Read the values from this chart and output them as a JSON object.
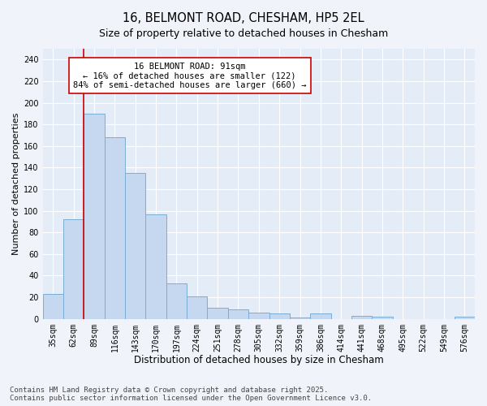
{
  "title": "16, BELMONT ROAD, CHESHAM, HP5 2EL",
  "subtitle": "Size of property relative to detached houses in Chesham",
  "xlabel": "Distribution of detached houses by size in Chesham",
  "ylabel": "Number of detached properties",
  "categories": [
    "35sqm",
    "62sqm",
    "89sqm",
    "116sqm",
    "143sqm",
    "170sqm",
    "197sqm",
    "224sqm",
    "251sqm",
    "278sqm",
    "305sqm",
    "332sqm",
    "359sqm",
    "386sqm",
    "414sqm",
    "441sqm",
    "468sqm",
    "495sqm",
    "522sqm",
    "549sqm",
    "576sqm"
  ],
  "values": [
    23,
    92,
    190,
    168,
    135,
    97,
    33,
    21,
    10,
    9,
    6,
    5,
    1,
    5,
    0,
    3,
    2,
    0,
    0,
    0,
    2
  ],
  "bar_color": "#c5d8f0",
  "bar_edge_color": "#7badd4",
  "vline_x": 1.5,
  "vline_color": "#cc0000",
  "annotation_line1": "16 BELMONT ROAD: 91sqm",
  "annotation_line2": "← 16% of detached houses are smaller (122)",
  "annotation_line3": "84% of semi-detached houses are larger (660) →",
  "annotation_box_color": "#cc0000",
  "annotation_text_color": "#000000",
  "background_color": "#f0f4fa",
  "plot_background_color": "#e4ecf7",
  "grid_color": "#ffffff",
  "ylim": [
    0,
    250
  ],
  "yticks": [
    0,
    20,
    40,
    60,
    80,
    100,
    120,
    140,
    160,
    180,
    200,
    220,
    240
  ],
  "footer": "Contains HM Land Registry data © Crown copyright and database right 2025.\nContains public sector information licensed under the Open Government Licence v3.0.",
  "title_fontsize": 10.5,
  "subtitle_fontsize": 9,
  "xlabel_fontsize": 8.5,
  "ylabel_fontsize": 8,
  "tick_fontsize": 7,
  "annotation_fontsize": 7.5,
  "footer_fontsize": 6.5
}
